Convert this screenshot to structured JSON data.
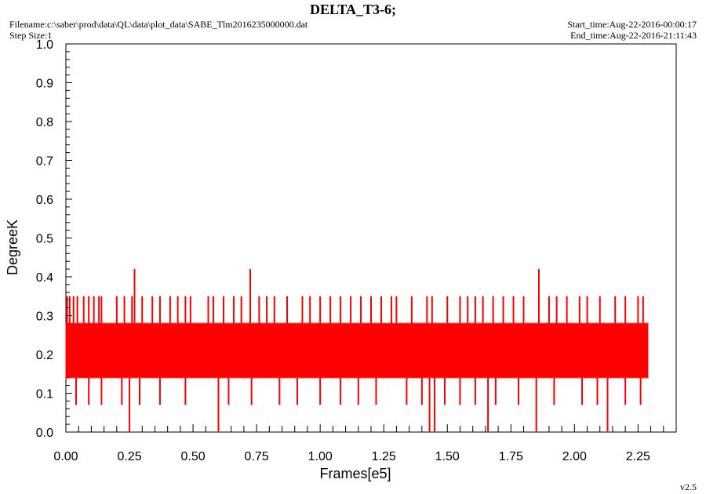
{
  "header": {
    "title": "DELTA_T3-6;",
    "filename": "Filename:c:\\saber\\prod\\data\\QL\\data\\plot_data\\SABE_Tlm2016235000000.dat",
    "step_size": "Step Size:1",
    "start_time": "Start_time:Aug-22-2016-00:00:17",
    "end_time": "End_time:Aug-22-2016-21:11:43",
    "version": "v2.5"
  },
  "chart_data": {
    "type": "line",
    "title": "DELTA_T3-6;",
    "xlabel": "Frames[e5]",
    "ylabel": "DegreeK",
    "xlim": [
      0.0,
      2.4
    ],
    "ylim": [
      0.0,
      1.0
    ],
    "x_ticks": [
      "0.00",
      "0.25",
      "0.50",
      "0.75",
      "1.00",
      "1.25",
      "1.50",
      "1.75",
      "2.00",
      "2.25"
    ],
    "y_ticks": [
      "0.0",
      "0.1",
      "0.2",
      "0.3",
      "0.4",
      "0.5",
      "0.6",
      "0.7",
      "0.8",
      "0.9",
      "1.0"
    ],
    "grid": false,
    "series": [
      {
        "color": "#ff0000",
        "x_range": [
          0.0,
          2.29
        ],
        "band_low": 0.14,
        "band_high": 0.28,
        "spikes_high": [
          {
            "x": 0.005,
            "y": 0.35
          },
          {
            "x": 0.015,
            "y": 0.35
          },
          {
            "x": 0.03,
            "y": 0.35
          },
          {
            "x": 0.045,
            "y": 0.35
          },
          {
            "x": 0.07,
            "y": 0.35
          },
          {
            "x": 0.09,
            "y": 0.35
          },
          {
            "x": 0.11,
            "y": 0.35
          },
          {
            "x": 0.13,
            "y": 0.35
          },
          {
            "x": 0.14,
            "y": 0.35
          },
          {
            "x": 0.2,
            "y": 0.35
          },
          {
            "x": 0.23,
            "y": 0.35
          },
          {
            "x": 0.26,
            "y": 0.35
          },
          {
            "x": 0.27,
            "y": 0.42
          },
          {
            "x": 0.3,
            "y": 0.35
          },
          {
            "x": 0.34,
            "y": 0.35
          },
          {
            "x": 0.37,
            "y": 0.35
          },
          {
            "x": 0.41,
            "y": 0.35
          },
          {
            "x": 0.44,
            "y": 0.35
          },
          {
            "x": 0.47,
            "y": 0.35
          },
          {
            "x": 0.49,
            "y": 0.35
          },
          {
            "x": 0.56,
            "y": 0.35
          },
          {
            "x": 0.58,
            "y": 0.35
          },
          {
            "x": 0.62,
            "y": 0.35
          },
          {
            "x": 0.66,
            "y": 0.35
          },
          {
            "x": 0.69,
            "y": 0.35
          },
          {
            "x": 0.725,
            "y": 0.42
          },
          {
            "x": 0.76,
            "y": 0.35
          },
          {
            "x": 0.79,
            "y": 0.35
          },
          {
            "x": 0.82,
            "y": 0.35
          },
          {
            "x": 0.87,
            "y": 0.35
          },
          {
            "x": 0.93,
            "y": 0.35
          },
          {
            "x": 0.96,
            "y": 0.35
          },
          {
            "x": 1.0,
            "y": 0.35
          },
          {
            "x": 1.04,
            "y": 0.35
          },
          {
            "x": 1.08,
            "y": 0.35
          },
          {
            "x": 1.12,
            "y": 0.35
          },
          {
            "x": 1.16,
            "y": 0.35
          },
          {
            "x": 1.2,
            "y": 0.35
          },
          {
            "x": 1.24,
            "y": 0.35
          },
          {
            "x": 1.28,
            "y": 0.35
          },
          {
            "x": 1.3,
            "y": 0.35
          },
          {
            "x": 1.36,
            "y": 0.35
          },
          {
            "x": 1.42,
            "y": 0.35
          },
          {
            "x": 1.44,
            "y": 0.35
          },
          {
            "x": 1.5,
            "y": 0.35
          },
          {
            "x": 1.55,
            "y": 0.35
          },
          {
            "x": 1.58,
            "y": 0.35
          },
          {
            "x": 1.61,
            "y": 0.35
          },
          {
            "x": 1.64,
            "y": 0.35
          },
          {
            "x": 1.68,
            "y": 0.35
          },
          {
            "x": 1.72,
            "y": 0.35
          },
          {
            "x": 1.76,
            "y": 0.35
          },
          {
            "x": 1.8,
            "y": 0.35
          },
          {
            "x": 1.86,
            "y": 0.42
          },
          {
            "x": 1.9,
            "y": 0.35
          },
          {
            "x": 1.93,
            "y": 0.35
          },
          {
            "x": 1.97,
            "y": 0.35
          },
          {
            "x": 2.02,
            "y": 0.35
          },
          {
            "x": 2.05,
            "y": 0.35
          },
          {
            "x": 2.1,
            "y": 0.35
          },
          {
            "x": 2.16,
            "y": 0.35
          },
          {
            "x": 2.2,
            "y": 0.35
          },
          {
            "x": 2.25,
            "y": 0.35
          },
          {
            "x": 2.27,
            "y": 0.35
          }
        ],
        "spikes_low": [
          {
            "x": 0.04,
            "y": 0.07
          },
          {
            "x": 0.09,
            "y": 0.07
          },
          {
            "x": 0.14,
            "y": 0.07
          },
          {
            "x": 0.22,
            "y": 0.07
          },
          {
            "x": 0.25,
            "y": 0.0
          },
          {
            "x": 0.29,
            "y": 0.07
          },
          {
            "x": 0.37,
            "y": 0.07
          },
          {
            "x": 0.47,
            "y": 0.07
          },
          {
            "x": 0.6,
            "y": 0.0
          },
          {
            "x": 0.64,
            "y": 0.07
          },
          {
            "x": 0.73,
            "y": 0.07
          },
          {
            "x": 0.84,
            "y": 0.07
          },
          {
            "x": 0.91,
            "y": 0.07
          },
          {
            "x": 1.0,
            "y": 0.07
          },
          {
            "x": 1.08,
            "y": 0.07
          },
          {
            "x": 1.15,
            "y": 0.07
          },
          {
            "x": 1.22,
            "y": 0.07
          },
          {
            "x": 1.34,
            "y": 0.07
          },
          {
            "x": 1.4,
            "y": 0.07
          },
          {
            "x": 1.43,
            "y": 0.0
          },
          {
            "x": 1.45,
            "y": 0.0
          },
          {
            "x": 1.49,
            "y": 0.07
          },
          {
            "x": 1.55,
            "y": 0.07
          },
          {
            "x": 1.61,
            "y": 0.07
          },
          {
            "x": 1.66,
            "y": 0.0
          },
          {
            "x": 1.69,
            "y": 0.07
          },
          {
            "x": 1.78,
            "y": 0.07
          },
          {
            "x": 1.85,
            "y": 0.0
          },
          {
            "x": 1.92,
            "y": 0.07
          },
          {
            "x": 2.03,
            "y": 0.07
          },
          {
            "x": 2.09,
            "y": 0.07
          },
          {
            "x": 2.13,
            "y": 0.0
          },
          {
            "x": 2.2,
            "y": 0.07
          },
          {
            "x": 2.26,
            "y": 0.07
          }
        ]
      }
    ]
  }
}
